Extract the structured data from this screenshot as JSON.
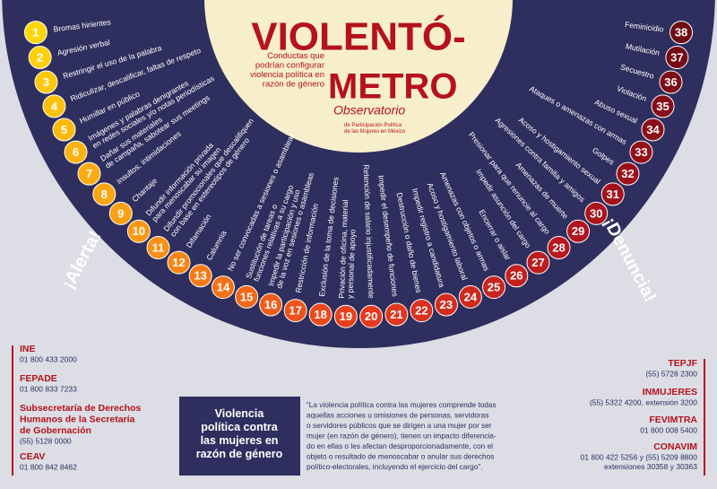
{
  "header": {
    "title_line1": "VIOLENTÓ-",
    "title_line2": "METRO",
    "subtitle": [
      "Conductas que",
      "podrían configurar",
      "violencia política en",
      "razón de género"
    ],
    "organization": "Observatorio",
    "organization_detail": [
      "de Participación Política",
      "de las Mujeres en México"
    ]
  },
  "items": [
    {
      "number": 1,
      "label": [
        "Bromas hirientes"
      ]
    },
    {
      "number": 2,
      "label": [
        "Agresión verbal"
      ]
    },
    {
      "number": 3,
      "label": [
        "Restringir el uso de la palabra"
      ]
    },
    {
      "number": 4,
      "label": [
        "Ridiculizar, descalificar, faltas de respeto"
      ]
    },
    {
      "number": 5,
      "label": [
        "Humillar en público"
      ]
    },
    {
      "number": 6,
      "label": [
        "Imágenes y palabras denigrantes",
        "en redes sociales y/o notas periodísticas"
      ]
    },
    {
      "number": 7,
      "label": [
        "Dañar sus materiales",
        "de campaña, sabotear sus meetings"
      ]
    },
    {
      "number": 8,
      "label": [
        "Insultos, intimidaciones"
      ]
    },
    {
      "number": 9,
      "label": [
        "Chantaje"
      ]
    },
    {
      "number": 10,
      "label": [
        "Difundir información privada",
        "para menoscabar su imagen"
      ]
    },
    {
      "number": 11,
      "label": [
        "Difundir promocionales que descalifiquen",
        "con base en estereotipos de género"
      ]
    },
    {
      "number": 12,
      "label": [
        "Difamación"
      ]
    },
    {
      "number": 13,
      "label": [
        "Calumnia"
      ]
    },
    {
      "number": 14,
      "label": [
        "No ser convocadas a sesiones o asambleas"
      ]
    },
    {
      "number": 15,
      "label": [
        "Sustitución de tareas o",
        "funciones relativas a su cargo"
      ]
    },
    {
      "number": 16,
      "label": [
        "Impedir la participación y uso",
        "de la voz en sesiones o asambleas"
      ]
    },
    {
      "number": 17,
      "label": [
        "Restricción de información"
      ]
    },
    {
      "number": 18,
      "label": [
        "Exclusión de la toma de decisiones"
      ]
    },
    {
      "number": 19,
      "label": [
        "Privación de oficina, material",
        "y personal de apoyo"
      ]
    },
    {
      "number": 20,
      "label": [
        "Retención de salario injustificadamente"
      ]
    },
    {
      "number": 21,
      "label": [
        "Impedir el desempeño de funciones"
      ]
    },
    {
      "number": 22,
      "label": [
        "Destrucción o daño de bienes"
      ]
    },
    {
      "number": 23,
      "label": [
        "Impedir registro a candidatura"
      ]
    },
    {
      "number": 24,
      "label": [
        "Acoso y hostigamiento laboral"
      ]
    },
    {
      "number": 25,
      "label": [
        "Amenazas con objetos o armas"
      ]
    },
    {
      "number": 26,
      "label": [
        "Encerrar o aislar"
      ]
    },
    {
      "number": 27,
      "label": [
        "Impedir asunción del cargo"
      ]
    },
    {
      "number": 28,
      "label": [
        "Presionar para que renuncie al cargo"
      ]
    },
    {
      "number": 29,
      "label": [
        "Amenazas de muerte"
      ]
    },
    {
      "number": 30,
      "label": [
        "Agresiones contra familia y amigos"
      ]
    },
    {
      "number": 31,
      "label": [
        "Acoso y hostigamiento sexual"
      ]
    },
    {
      "number": 32,
      "label": [
        "Golpes"
      ]
    },
    {
      "number": 33,
      "label": [
        "Ataques o amenazas con armas"
      ]
    },
    {
      "number": 34,
      "label": [
        "Abuso sexual"
      ]
    },
    {
      "number": 35,
      "label": [
        "Violación"
      ]
    },
    {
      "number": 36,
      "label": [
        "Secuestro"
      ]
    },
    {
      "number": 37,
      "label": [
        "Mutilación"
      ]
    },
    {
      "number": 38,
      "label": [
        "Feminicidio"
      ]
    }
  ],
  "alerts": {
    "left": "¡Alerta!",
    "right": "¡Denuncia!"
  },
  "contacts_left": [
    {
      "name": [
        "INE"
      ],
      "lines": [
        "01 800 433 2000"
      ]
    },
    {
      "name": [
        "FEPADE"
      ],
      "lines": [
        "01 800 833 7233"
      ]
    },
    {
      "name": [
        "Subsecretaría de Derechos",
        "Humanos de la Secretaría",
        "de Gobernación"
      ],
      "lines": [
        "(55) 5128 0000"
      ]
    },
    {
      "name": [
        "CEAV"
      ],
      "lines": [
        "01 800 842 8462"
      ]
    }
  ],
  "contacts_right": [
    {
      "name": [
        "TEPJF"
      ],
      "lines": [
        "(55) 5728 2300"
      ]
    },
    {
      "name": [
        "INMUJERES"
      ],
      "lines": [
        "(55) 5322 4200, extensión 3200"
      ]
    },
    {
      "name": [
        "FEVIMTRA"
      ],
      "lines": [
        "01 800 008 5400"
      ]
    },
    {
      "name": [
        "CONAVIM"
      ],
      "lines": [
        "01 800 422 5256 y (55) 5209 8800",
        "extensiones 30358 y 30363"
      ]
    }
  ],
  "definition": {
    "title": [
      "Violencia",
      "política contra",
      "las mujeres en",
      "razón de género"
    ],
    "text": [
      "“La violencia política contra las mujeres comprende todas",
      "aquellas acciones u omisiones de personas, servidoras",
      "o servidores públicos que se dirigen a una mujer por ser",
      "mujer (en razón de género), tienen un impacto diferencia-",
      "do en ellas o les afectan desproporcionadamente, con el",
      "objeto o resultado de menoscabar o anular sus derechos",
      "político-electorales, incluyendo el ejercicio del cargo”."
    ]
  }
}
